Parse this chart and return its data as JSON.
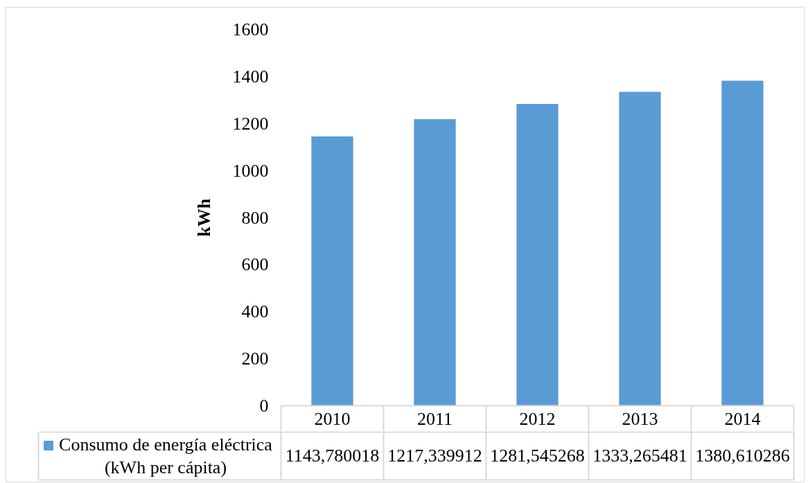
{
  "chart_data": {
    "type": "bar",
    "ylabel": "kWh",
    "categories": [
      "2010",
      "2011",
      "2012",
      "2013",
      "2014"
    ],
    "series": [
      {
        "name": "Consumo de energía eléctrica (kWh per cápita)",
        "color": "#5b9bd5",
        "values": [
          1143.780018,
          1217.339912,
          1281.545268,
          1333.265481,
          1380.610286
        ],
        "value_labels": [
          "1143,780018",
          "1217,339912",
          "1281,545268",
          "1333,265481",
          "1380,610286"
        ]
      }
    ],
    "ylim": [
      0,
      1600
    ],
    "yticks": [
      0,
      200,
      400,
      600,
      800,
      1000,
      1200,
      1400,
      1600
    ],
    "grid": false,
    "legend": "bottom left"
  }
}
